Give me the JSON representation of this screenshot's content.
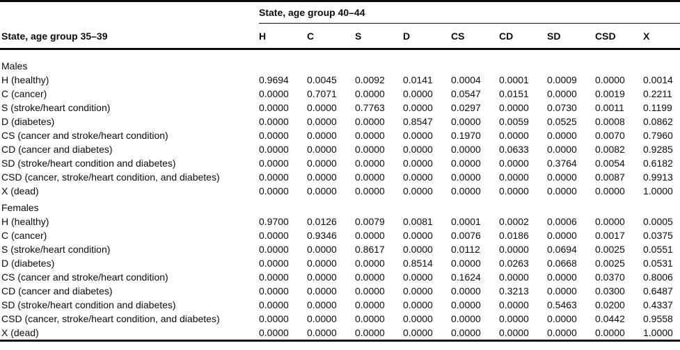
{
  "header": {
    "row_group_title": "State, age group 35–39",
    "col_group_title": "State, age group 40–44",
    "columns": [
      "H",
      "C",
      "S",
      "D",
      "CS",
      "CD",
      "SD",
      "CSD",
      "X"
    ]
  },
  "sections": [
    {
      "label": "Males",
      "rows": [
        {
          "label": "H (healthy)",
          "values": [
            "0.9694",
            "0.0045",
            "0.0092",
            "0.0141",
            "0.0004",
            "0.0001",
            "0.0009",
            "0.0000",
            "0.0014"
          ]
        },
        {
          "label": "C (cancer)",
          "values": [
            "0.0000",
            "0.7071",
            "0.0000",
            "0.0000",
            "0.0547",
            "0.0151",
            "0.0000",
            "0.0019",
            "0.2211"
          ]
        },
        {
          "label": "S (stroke/heart condition)",
          "values": [
            "0.0000",
            "0.0000",
            "0.7763",
            "0.0000",
            "0.0297",
            "0.0000",
            "0.0730",
            "0.0011",
            "0.1199"
          ]
        },
        {
          "label": "D (diabetes)",
          "values": [
            "0.0000",
            "0.0000",
            "0.0000",
            "0.8547",
            "0.0000",
            "0.0059",
            "0.0525",
            "0.0008",
            "0.0862"
          ]
        },
        {
          "label": "CS (cancer and stroke/heart condition)",
          "values": [
            "0.0000",
            "0.0000",
            "0.0000",
            "0.0000",
            "0.1970",
            "0.0000",
            "0.0000",
            "0.0070",
            "0.7960"
          ]
        },
        {
          "label": "CD (cancer and diabetes)",
          "values": [
            "0.0000",
            "0.0000",
            "0.0000",
            "0.0000",
            "0.0000",
            "0.0633",
            "0.0000",
            "0.0082",
            "0.9285"
          ]
        },
        {
          "label": "SD (stroke/heart condition and diabetes)",
          "values": [
            "0.0000",
            "0.0000",
            "0.0000",
            "0.0000",
            "0.0000",
            "0.0000",
            "0.3764",
            "0.0054",
            "0.6182"
          ]
        },
        {
          "label": "CSD (cancer, stroke/heart condition, and diabetes)",
          "values": [
            "0.0000",
            "0.0000",
            "0.0000",
            "0.0000",
            "0.0000",
            "0.0000",
            "0.0000",
            "0.0087",
            "0.9913"
          ]
        },
        {
          "label": "X (dead)",
          "values": [
            "0.0000",
            "0.0000",
            "0.0000",
            "0.0000",
            "0.0000",
            "0.0000",
            "0.0000",
            "0.0000",
            "1.0000"
          ]
        }
      ]
    },
    {
      "label": "Females",
      "rows": [
        {
          "label": "H (healthy)",
          "values": [
            "0.9700",
            "0.0126",
            "0.0079",
            "0.0081",
            "0.0001",
            "0.0002",
            "0.0006",
            "0.0000",
            "0.0005"
          ]
        },
        {
          "label": "C (cancer)",
          "values": [
            "0.0000",
            "0.9346",
            "0.0000",
            "0.0000",
            "0.0076",
            "0.0186",
            "0.0000",
            "0.0017",
            "0.0375"
          ]
        },
        {
          "label": "S (stroke/heart condition)",
          "values": [
            "0.0000",
            "0.0000",
            "0.8617",
            "0.0000",
            "0.0112",
            "0.0000",
            "0.0694",
            "0.0025",
            "0.0551"
          ]
        },
        {
          "label": "D (diabetes)",
          "values": [
            "0.0000",
            "0.0000",
            "0.0000",
            "0.8514",
            "0.0000",
            "0.0263",
            "0.0668",
            "0.0025",
            "0.0531"
          ]
        },
        {
          "label": "CS (cancer and stroke/heart condition)",
          "values": [
            "0.0000",
            "0.0000",
            "0.0000",
            "0.0000",
            "0.1624",
            "0.0000",
            "0.0000",
            "0.0370",
            "0.8006"
          ]
        },
        {
          "label": "CD (cancer and diabetes)",
          "values": [
            "0.0000",
            "0.0000",
            "0.0000",
            "0.0000",
            "0.0000",
            "0.3213",
            "0.0000",
            "0.0300",
            "0.6487"
          ]
        },
        {
          "label": "SD (stroke/heart condition and diabetes)",
          "values": [
            "0.0000",
            "0.0000",
            "0.0000",
            "0.0000",
            "0.0000",
            "0.0000",
            "0.5463",
            "0.0200",
            "0.4337"
          ]
        },
        {
          "label": "CSD (cancer, stroke/heart condition, and diabetes)",
          "values": [
            "0.0000",
            "0.0000",
            "0.0000",
            "0.0000",
            "0.0000",
            "0.0000",
            "0.0000",
            "0.0442",
            "0.9558"
          ]
        },
        {
          "label": "X (dead)",
          "values": [
            "0.0000",
            "0.0000",
            "0.0000",
            "0.0000",
            "0.0000",
            "0.0000",
            "0.0000",
            "0.0000",
            "1.0000"
          ]
        }
      ]
    }
  ],
  "colors": {
    "text": "#0b0b0b",
    "rule": "#0b0b0b",
    "background": "#ffffff"
  }
}
